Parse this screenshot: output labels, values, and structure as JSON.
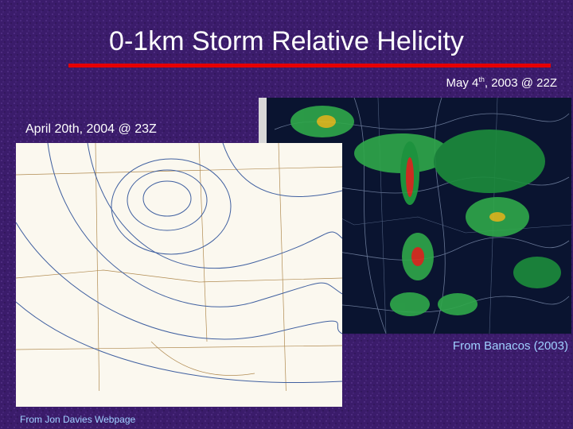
{
  "title": "0-1km Storm Relative Helicity",
  "right_panel": {
    "caption": {
      "before": "May 4",
      "superscript": "th",
      "after": ", 2003 @ 22Z"
    },
    "credit": "From Banacos (2003)"
  },
  "left_panel": {
    "caption": "April 20th, 2004 @ 23Z",
    "credit": "From Jon Davies Webpage"
  }
}
